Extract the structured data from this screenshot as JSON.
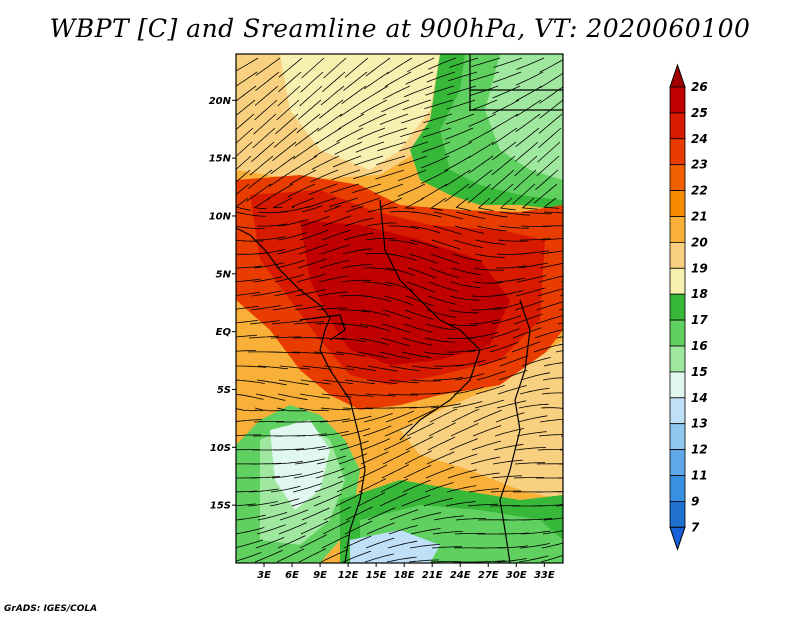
{
  "title": "WBPT [C] and Sreamline at 900hPa, VT: 2020060100",
  "footer": "GrADS: IGES/COLA",
  "map": {
    "lon_range": [
      0,
      35
    ],
    "lat_range": [
      -20,
      24
    ],
    "lat_ticks": [
      {
        "value": 20,
        "label": "20N"
      },
      {
        "value": 15,
        "label": "15N"
      },
      {
        "value": 10,
        "label": "10N"
      },
      {
        "value": 5,
        "label": "5N"
      },
      {
        "value": 0,
        "label": "EQ"
      },
      {
        "value": -5,
        "label": "5S"
      },
      {
        "value": -10,
        "label": "10S"
      },
      {
        "value": -15,
        "label": "15S"
      }
    ],
    "lon_ticks": [
      {
        "value": 3,
        "label": "3E"
      },
      {
        "value": 6,
        "label": "6E"
      },
      {
        "value": 9,
        "label": "9E"
      },
      {
        "value": 12,
        "label": "12E"
      },
      {
        "value": 15,
        "label": "15E"
      },
      {
        "value": 18,
        "label": "18E"
      },
      {
        "value": 21,
        "label": "21E"
      },
      {
        "value": 24,
        "label": "24E"
      },
      {
        "value": 27,
        "label": "27E"
      },
      {
        "value": 30,
        "label": "30E"
      },
      {
        "value": 33,
        "label": "33E"
      }
    ]
  },
  "colorbar": {
    "labels": [
      "26",
      "25",
      "24",
      "23",
      "22",
      "21",
      "20",
      "19",
      "18",
      "17",
      "16",
      "15",
      "14",
      "13",
      "12",
      "11",
      "9",
      "7"
    ],
    "colors": [
      "#c00000",
      "#d81a00",
      "#e83c00",
      "#f06000",
      "#f88a00",
      "#f8b038",
      "#f8d080",
      "#f8f0b0",
      "#38b838",
      "#60d060",
      "#a0e8a0",
      "#e0f8f0",
      "#c0e0f8",
      "#90c8f0",
      "#60a8e8",
      "#3890e0",
      "#2070d0"
    ],
    "top_triangle_color": "#a00000",
    "bottom_triangle_color": "#1860d8"
  }
}
